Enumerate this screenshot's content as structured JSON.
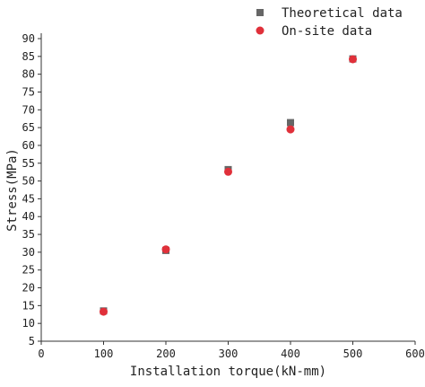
{
  "chart_data": {
    "type": "scatter",
    "xlabel": "Installation torque(kN-mm)",
    "ylabel": "Stress(MPa)",
    "xlim": [
      0,
      600
    ],
    "ylim": [
      5,
      90
    ],
    "xticks": [
      "0",
      "100",
      "200",
      "300",
      "400",
      "500",
      "600"
    ],
    "yticks": [
      "5",
      "10",
      "15",
      "20",
      "25",
      "30",
      "35",
      "40",
      "45",
      "50",
      "55",
      "60",
      "65",
      "70",
      "75",
      "80",
      "85",
      "90"
    ],
    "grid": false,
    "legend_position": "top-right",
    "series": [
      {
        "name": "Theoretical data",
        "marker": "square",
        "color": "#666666",
        "x": [
          100,
          200,
          300,
          400,
          500
        ],
        "y": [
          13.5,
          30.5,
          53.2,
          66.4,
          84.3
        ]
      },
      {
        "name": "On-site data",
        "marker": "circle",
        "color": "#e0303a",
        "x": [
          100,
          200,
          300,
          400,
          500
        ],
        "y": [
          13.3,
          30.8,
          52.6,
          64.5,
          84.2
        ]
      }
    ]
  }
}
